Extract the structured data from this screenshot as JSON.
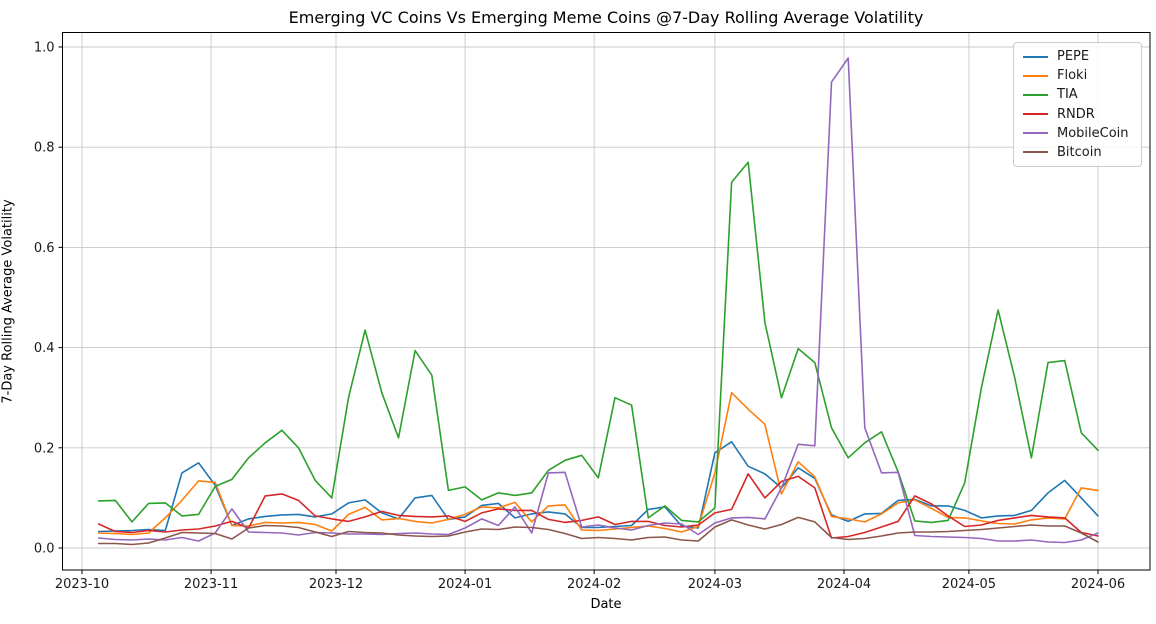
{
  "chart_data": {
    "type": "line",
    "title": "Emerging VC Coins Vs Emerging Meme Coins @7-Day Rolling Average Volatility",
    "xlabel": "Date",
    "ylabel": "7-Day Rolling Average Volatility",
    "grid": true,
    "legend_position": "upper right",
    "ylim": [
      -0.04,
      1.03
    ],
    "y_ticks": [
      0.0,
      0.2,
      0.4,
      0.6,
      0.8,
      1.0
    ],
    "y_tick_labels": [
      "0.0",
      "0.2",
      "0.4",
      "0.6",
      "0.8",
      "1.0"
    ],
    "x_tick_labels": [
      "2023-10",
      "2023-11",
      "2023-12",
      "2024-01",
      "2024-02",
      "2024-03",
      "2024-04",
      "2024-05",
      "2024-06"
    ],
    "dates": [
      "2023-10-05",
      "2023-10-09",
      "2023-10-13",
      "2023-10-17",
      "2023-10-21",
      "2023-10-25",
      "2023-10-29",
      "2023-11-02",
      "2023-11-06",
      "2023-11-10",
      "2023-11-14",
      "2023-11-18",
      "2023-11-22",
      "2023-11-26",
      "2023-11-30",
      "2023-12-04",
      "2023-12-08",
      "2023-12-12",
      "2023-12-16",
      "2023-12-20",
      "2023-12-24",
      "2023-12-28",
      "2024-01-01",
      "2024-01-05",
      "2024-01-09",
      "2024-01-13",
      "2024-01-17",
      "2024-01-21",
      "2024-01-25",
      "2024-01-29",
      "2024-02-02",
      "2024-02-06",
      "2024-02-10",
      "2024-02-14",
      "2024-02-18",
      "2024-02-22",
      "2024-02-26",
      "2024-03-01",
      "2024-03-05",
      "2024-03-09",
      "2024-03-13",
      "2024-03-17",
      "2024-03-21",
      "2024-03-25",
      "2024-03-29",
      "2024-04-02",
      "2024-04-06",
      "2024-04-10",
      "2024-04-14",
      "2024-04-18",
      "2024-04-22",
      "2024-04-26",
      "2024-04-30",
      "2024-05-04",
      "2024-05-08",
      "2024-05-12",
      "2024-05-16",
      "2024-05-20",
      "2024-05-24",
      "2024-05-28",
      "2024-06-01"
    ],
    "series": [
      {
        "name": "PEPE",
        "color": "#1f77b4",
        "values": [
          0.033,
          0.034,
          0.035,
          0.037,
          0.035,
          0.15,
          0.17,
          0.125,
          0.045,
          0.058,
          0.063,
          0.066,
          0.067,
          0.062,
          0.068,
          0.09,
          0.096,
          0.07,
          0.058,
          0.1,
          0.105,
          0.057,
          0.062,
          0.085,
          0.089,
          0.06,
          0.068,
          0.072,
          0.068,
          0.041,
          0.041,
          0.043,
          0.045,
          0.077,
          0.082,
          0.044,
          0.04,
          0.19,
          0.212,
          0.163,
          0.148,
          0.12,
          0.16,
          0.139,
          0.066,
          0.053,
          0.068,
          0.069,
          0.095,
          0.097,
          0.084,
          0.084,
          0.075,
          0.06,
          0.064,
          0.065,
          0.075,
          0.11,
          0.135,
          0.1,
          0.064
        ]
      },
      {
        "name": "Floki",
        "color": "#ff7f0e",
        "values": [
          0.03,
          0.029,
          0.027,
          0.03,
          0.06,
          0.095,
          0.134,
          0.131,
          0.045,
          0.044,
          0.051,
          0.05,
          0.051,
          0.047,
          0.034,
          0.067,
          0.081,
          0.056,
          0.059,
          0.053,
          0.05,
          0.057,
          0.067,
          0.082,
          0.08,
          0.091,
          0.052,
          0.084,
          0.086,
          0.036,
          0.035,
          0.038,
          0.041,
          0.044,
          0.039,
          0.032,
          0.043,
          0.15,
          0.31,
          0.277,
          0.247,
          0.108,
          0.172,
          0.142,
          0.063,
          0.058,
          0.052,
          0.068,
          0.09,
          0.096,
          0.079,
          0.061,
          0.06,
          0.054,
          0.049,
          0.048,
          0.056,
          0.06,
          0.058,
          0.12,
          0.115
        ]
      },
      {
        "name": "TIA",
        "color": "#2ca02c",
        "values": [
          0.094,
          0.095,
          0.052,
          0.089,
          0.09,
          0.064,
          0.067,
          0.123,
          0.137,
          0.18,
          0.21,
          0.235,
          0.2,
          0.135,
          0.1,
          0.3,
          0.435,
          0.31,
          0.22,
          0.394,
          0.345,
          0.115,
          0.122,
          0.096,
          0.11,
          0.105,
          0.11,
          0.155,
          0.175,
          0.185,
          0.14,
          0.3,
          0.285,
          0.06,
          0.084,
          0.055,
          0.052,
          0.08,
          0.73,
          0.77,
          0.45,
          0.3,
          0.398,
          0.37,
          0.24,
          0.18,
          0.21,
          0.232,
          0.152,
          0.054,
          0.051,
          0.055,
          0.13,
          0.32,
          0.475,
          0.34,
          0.18,
          0.37,
          0.374,
          0.23,
          0.195
        ]
      },
      {
        "name": "RNDR",
        "color": "#d62728",
        "values": [
          0.048,
          0.033,
          0.031,
          0.035,
          0.032,
          0.036,
          0.038,
          0.044,
          0.053,
          0.04,
          0.104,
          0.108,
          0.095,
          0.064,
          0.058,
          0.053,
          0.062,
          0.073,
          0.065,
          0.063,
          0.062,
          0.064,
          0.053,
          0.07,
          0.078,
          0.075,
          0.075,
          0.057,
          0.051,
          0.055,
          0.062,
          0.047,
          0.053,
          0.053,
          0.045,
          0.042,
          0.046,
          0.07,
          0.077,
          0.148,
          0.1,
          0.133,
          0.143,
          0.12,
          0.02,
          0.023,
          0.031,
          0.042,
          0.053,
          0.104,
          0.088,
          0.064,
          0.043,
          0.046,
          0.055,
          0.06,
          0.065,
          0.062,
          0.06,
          0.031,
          0.024
        ]
      },
      {
        "name": "MobileCoin",
        "color": "#9467bd",
        "values": [
          0.02,
          0.017,
          0.016,
          0.018,
          0.016,
          0.021,
          0.014,
          0.03,
          0.078,
          0.032,
          0.031,
          0.03,
          0.026,
          0.031,
          0.03,
          0.028,
          0.028,
          0.027,
          0.029,
          0.03,
          0.028,
          0.027,
          0.04,
          0.058,
          0.045,
          0.082,
          0.03,
          0.15,
          0.151,
          0.042,
          0.046,
          0.04,
          0.036,
          0.045,
          0.05,
          0.048,
          0.027,
          0.05,
          0.06,
          0.061,
          0.058,
          0.12,
          0.207,
          0.204,
          0.93,
          0.978,
          0.24,
          0.15,
          0.151,
          0.025,
          0.023,
          0.022,
          0.021,
          0.019,
          0.014,
          0.014,
          0.016,
          0.012,
          0.011,
          0.016,
          0.03
        ]
      },
      {
        "name": "Bitcoin",
        "color": "#8c564b",
        "values": [
          0.009,
          0.009,
          0.007,
          0.01,
          0.02,
          0.031,
          0.03,
          0.029,
          0.018,
          0.04,
          0.045,
          0.044,
          0.041,
          0.032,
          0.023,
          0.033,
          0.031,
          0.03,
          0.026,
          0.024,
          0.023,
          0.024,
          0.032,
          0.038,
          0.037,
          0.042,
          0.041,
          0.037,
          0.029,
          0.019,
          0.021,
          0.019,
          0.016,
          0.021,
          0.022,
          0.016,
          0.014,
          0.042,
          0.056,
          0.046,
          0.038,
          0.047,
          0.061,
          0.052,
          0.021,
          0.017,
          0.019,
          0.024,
          0.03,
          0.032,
          0.032,
          0.033,
          0.035,
          0.037,
          0.04,
          0.043,
          0.046,
          0.044,
          0.044,
          0.03,
          0.012
        ]
      }
    ]
  }
}
